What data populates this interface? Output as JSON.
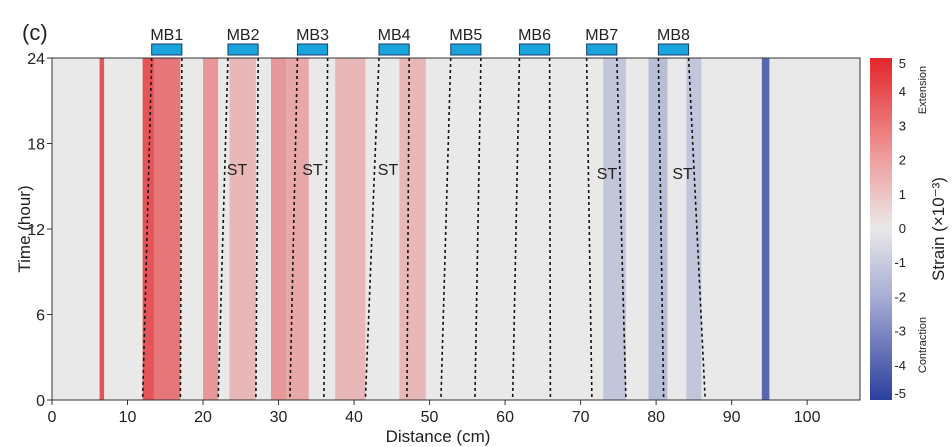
{
  "panel_label": "(c)",
  "chart_data": {
    "type": "heatmap",
    "xlabel": "Distance (cm)",
    "ylabel": "Time (hour)",
    "xlim": [
      0,
      107
    ],
    "ylim": [
      0,
      24
    ],
    "x_ticks": [
      "0",
      "10",
      "20",
      "30",
      "40",
      "50",
      "60",
      "70",
      "80",
      "90",
      "100"
    ],
    "x_tick_values": [
      0,
      10,
      20,
      30,
      40,
      50,
      60,
      70,
      80,
      90,
      100
    ],
    "y_ticks": [
      "0",
      "6",
      "12",
      "18",
      "24"
    ],
    "y_tick_values": [
      0,
      6,
      12,
      18,
      24
    ],
    "colorbar": {
      "label": "Strain (×10⁻³)",
      "range": [
        -5,
        5
      ],
      "ticks": [
        "5",
        "4",
        "3",
        "2",
        "1",
        "0",
        "-1",
        "-2",
        "-3",
        "-4",
        "-5"
      ],
      "tick_values": [
        5,
        4,
        3,
        2,
        1,
        0,
        -1,
        -2,
        -3,
        -4,
        -5
      ],
      "top_label": "Extension",
      "bottom_label": "Contraction",
      "colors": {
        "negative": "#2b3f9e",
        "zero": "#e9e9e9",
        "positive": "#e3262b"
      }
    },
    "bands": [
      {
        "from": 6.3,
        "to": 6.9,
        "value": 4.5
      },
      {
        "from": 12,
        "to": 13.5,
        "value": 4.5
      },
      {
        "from": 13.5,
        "to": 17,
        "value": 3.5
      },
      {
        "from": 20,
        "to": 22,
        "value": 2.5
      },
      {
        "from": 23.5,
        "to": 27,
        "value": 1.5
      },
      {
        "from": 29,
        "to": 31,
        "value": 2.5
      },
      {
        "from": 31,
        "to": 34,
        "value": 2
      },
      {
        "from": 37.5,
        "to": 41.5,
        "value": 1.5
      },
      {
        "from": 46,
        "to": 49.5,
        "value": 1.5
      },
      {
        "from": 73,
        "to": 76,
        "value": -1.2
      },
      {
        "from": 79,
        "to": 81.5,
        "value": -1.5
      },
      {
        "from": 84,
        "to": 86,
        "value": -1.2
      },
      {
        "from": 94,
        "to": 95,
        "value": -4.5
      }
    ],
    "stress_blocks": [
      {
        "name": "MB1",
        "from": 13.2,
        "to": 17.2
      },
      {
        "name": "MB2",
        "from": 23.3,
        "to": 27.3
      },
      {
        "name": "MB3",
        "from": 32.5,
        "to": 36.5
      },
      {
        "name": "MB4",
        "from": 43.3,
        "to": 47.3
      },
      {
        "name": "MB5",
        "from": 52.8,
        "to": 56.8
      },
      {
        "name": "MB6",
        "from": 61.9,
        "to": 65.9
      },
      {
        "name": "MB7",
        "from": 70.8,
        "to": 74.8
      },
      {
        "name": "MB8",
        "from": 80.3,
        "to": 84.3
      }
    ],
    "dashed_boundaries": [
      {
        "top": 13.2,
        "bottom": 12.0
      },
      {
        "top": 17.2,
        "bottom": 17.0
      },
      {
        "top": 23.3,
        "bottom": 22.0
      },
      {
        "top": 27.3,
        "bottom": 27.0
      },
      {
        "top": 32.5,
        "bottom": 31.5
      },
      {
        "top": 36.5,
        "bottom": 36.0
      },
      {
        "top": 43.3,
        "bottom": 41.5
      },
      {
        "top": 47.3,
        "bottom": 47.0
      },
      {
        "top": 52.8,
        "bottom": 51.5
      },
      {
        "top": 56.8,
        "bottom": 56.0
      },
      {
        "top": 61.9,
        "bottom": 61.0
      },
      {
        "top": 65.9,
        "bottom": 66.0
      },
      {
        "top": 70.8,
        "bottom": 71.5
      },
      {
        "top": 74.8,
        "bottom": 76.0
      },
      {
        "top": 80.3,
        "bottom": 81.0
      },
      {
        "top": 84.3,
        "bottom": 86.5
      }
    ],
    "annotations": [
      {
        "text": "ST",
        "x": 24.5,
        "y": 15.8
      },
      {
        "text": "ST",
        "x": 34.5,
        "y": 15.8
      },
      {
        "text": "ST",
        "x": 44.5,
        "y": 15.8
      },
      {
        "text": "ST",
        "x": 73.5,
        "y": 15.5
      },
      {
        "text": "ST",
        "x": 83.5,
        "y": 15.5
      }
    ]
  }
}
